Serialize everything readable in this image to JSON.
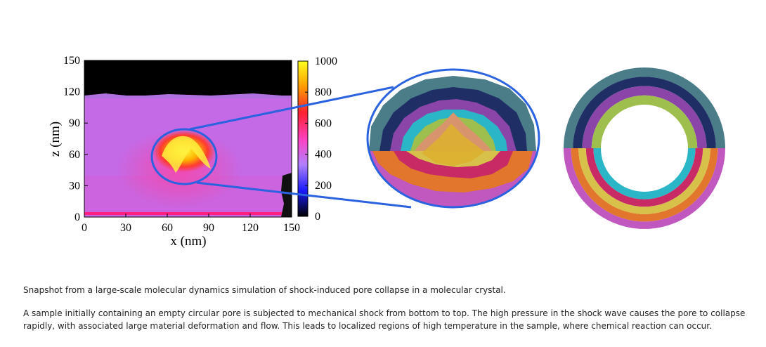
{
  "chart_data": {
    "type": "heatmap",
    "xlabel": "x (nm)",
    "ylabel": "z (nm)",
    "xlim": [
      0,
      150
    ],
    "ylim": [
      0,
      150
    ],
    "x_ticks": [
      "0",
      "30",
      "60",
      "90",
      "120",
      "150"
    ],
    "y_ticks": [
      "0",
      "30",
      "60",
      "90",
      "120",
      "150"
    ],
    "colorbar": {
      "range": [
        0,
        1000
      ],
      "ticks": [
        "0",
        "200",
        "400",
        "600",
        "800",
        "1000"
      ],
      "stops": [
        "#000000",
        "#1a1aff",
        "#b080ff",
        "#ff40c0",
        "#ff2030",
        "#ff9a00",
        "#ffff20"
      ]
    },
    "field": {
      "background": 440,
      "top_region": {
        "z_from": 123,
        "value": 0
      },
      "hotspot": {
        "x": 65,
        "z": 60,
        "peak": 950
      },
      "bottom_row": {
        "z_to": 2,
        "value": 620
      }
    }
  },
  "colors": {
    "zoom_ellipse": "#2a62e0",
    "rings": [
      "#4a7d88",
      "#1f2f66",
      "#8b45a8",
      "#2bb6c8",
      "#9ebe4e",
      "#e1762c",
      "#d8c14a",
      "#c82a66",
      "#c058c0"
    ]
  },
  "captions": [
    "Snapshot from a large-scale molecular dynamics simulation of shock-induced pore collapse in a molecular crystal.",
    "A sample initially containing an empty circular pore is subjected to mechanical shock from bottom to top. The high pressure in the shock wave causes the pore to collapse rapidly, with associated large material deformation and flow. This leads to localized regions of high temperature in the sample, where chemical reaction can occur."
  ]
}
